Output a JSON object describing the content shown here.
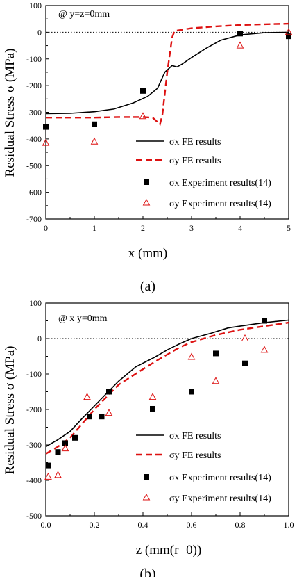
{
  "chart_data": [
    {
      "type": "line",
      "annotation": "@ y=z=0mm",
      "caption": "(a)",
      "xlabel": "x (mm)",
      "ylabel": "Residual Stress σ (MPa)",
      "xlim": [
        0,
        5
      ],
      "ylim": [
        -700,
        100
      ],
      "xticks": [
        "0",
        "1",
        "2",
        "3",
        "4",
        "5"
      ],
      "yticks": [
        "100",
        "0",
        "-100",
        "-200",
        "-300",
        "-400",
        "-500",
        "-600",
        "-700"
      ],
      "zero_line": "dotted",
      "legend_position": "bottom-right",
      "series": [
        {
          "name": "σx FE results",
          "kind": "line",
          "style": "solid",
          "color": "#000000",
          "x": [
            0,
            0.5,
            1.0,
            1.4,
            1.8,
            2.1,
            2.3,
            2.45,
            2.6,
            2.7,
            2.8,
            3.0,
            3.3,
            3.6,
            4.0,
            4.5,
            5.0
          ],
          "y": [
            -305,
            -304,
            -298,
            -288,
            -265,
            -240,
            -210,
            -150,
            -125,
            -130,
            -120,
            -95,
            -60,
            -30,
            -10,
            -2,
            0
          ]
        },
        {
          "name": "σy FE results",
          "kind": "line",
          "style": "dashed",
          "color": "#dd1111",
          "x": [
            0,
            0.5,
            1.0,
            1.5,
            2.0,
            2.2,
            2.35,
            2.4,
            2.5,
            2.6,
            2.65,
            3.0,
            3.5,
            4.0,
            4.5,
            5.0
          ],
          "y": [
            -320,
            -320,
            -320,
            -318,
            -318,
            -320,
            -345,
            -310,
            -150,
            -20,
            5,
            15,
            22,
            27,
            30,
            32
          ]
        },
        {
          "name": "σx Experiment results(14)",
          "kind": "scatter",
          "marker": "square",
          "color": "#000000",
          "x": [
            0,
            1,
            2,
            4,
            5
          ],
          "y": [
            -355,
            -345,
            -220,
            -5,
            -15
          ]
        },
        {
          "name": "σy Experiment results(14)",
          "kind": "scatter",
          "marker": "triangle-open",
          "color": "#dd1111",
          "x": [
            0,
            1,
            2,
            4,
            5
          ],
          "y": [
            -415,
            -410,
            -315,
            -50,
            0
          ]
        }
      ]
    },
    {
      "type": "line",
      "annotation": "@ x  y=0mm",
      "caption": "(b)",
      "xlabel": "z (mm(r=0))",
      "ylabel": "Residual Stress σ (MPa)",
      "xlim": [
        0,
        1.0
      ],
      "ylim": [
        -500,
        100
      ],
      "xticks": [
        "0.0",
        "0.2",
        "0.4",
        "0.6",
        "0.8",
        "1.0"
      ],
      "yticks": [
        "100",
        "0",
        "-100",
        "-200",
        "-300",
        "-400",
        "-500"
      ],
      "zero_line": "dotted",
      "legend_position": "bottom-right",
      "series": [
        {
          "name": "σx FE results",
          "kind": "line",
          "style": "solid",
          "color": "#000000",
          "x": [
            0,
            0.05,
            0.1,
            0.15,
            0.2,
            0.25,
            0.3,
            0.37,
            0.45,
            0.5,
            0.55,
            0.6,
            0.68,
            0.75,
            0.8,
            0.9,
            1.0
          ],
          "y": [
            -305,
            -285,
            -262,
            -225,
            -190,
            -155,
            -120,
            -80,
            -52,
            -32,
            -15,
            0,
            15,
            30,
            35,
            45,
            52
          ]
        },
        {
          "name": "σy FE results",
          "kind": "line",
          "style": "dashed",
          "color": "#dd1111",
          "x": [
            0,
            0.05,
            0.1,
            0.15,
            0.2,
            0.25,
            0.3,
            0.38,
            0.45,
            0.5,
            0.55,
            0.6,
            0.7,
            0.8,
            0.9,
            1.0
          ],
          "y": [
            -325,
            -305,
            -280,
            -240,
            -200,
            -165,
            -130,
            -95,
            -65,
            -45,
            -25,
            -10,
            10,
            25,
            35,
            45
          ]
        },
        {
          "name": "σx Experiment results(14)",
          "kind": "scatter",
          "marker": "square",
          "color": "#000000",
          "x": [
            0.01,
            0.05,
            0.08,
            0.12,
            0.18,
            0.23,
            0.26,
            0.44,
            0.6,
            0.7,
            0.82,
            0.9
          ],
          "y": [
            -358,
            -320,
            -295,
            -280,
            -220,
            -220,
            -150,
            -198,
            -150,
            -42,
            -70,
            50
          ]
        },
        {
          "name": "σy Experiment results(14)",
          "kind": "scatter",
          "marker": "triangle-open",
          "color": "#dd1111",
          "x": [
            0.01,
            0.05,
            0.08,
            0.17,
            0.26,
            0.44,
            0.6,
            0.7,
            0.82,
            0.9
          ],
          "y": [
            -390,
            -385,
            -310,
            -165,
            -210,
            -165,
            -52,
            -120,
            0,
            -32
          ]
        }
      ]
    }
  ]
}
